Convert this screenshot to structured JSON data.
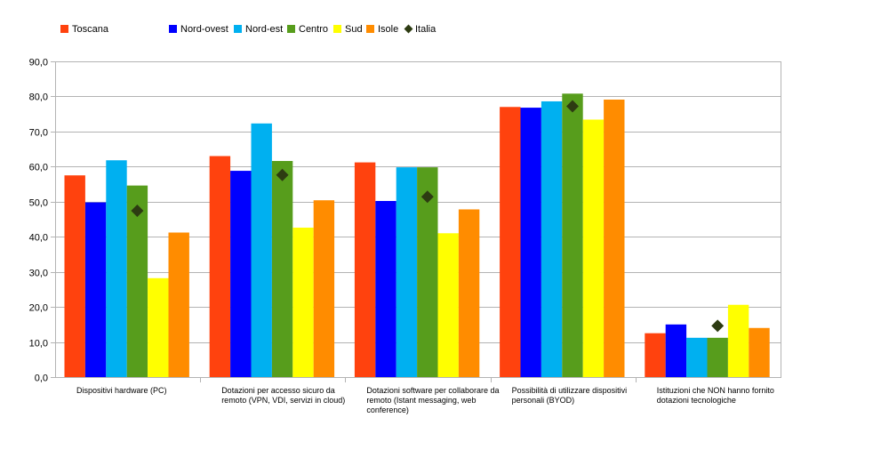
{
  "chart_data": {
    "type": "bar",
    "categories": [
      "Dispositivi hardware (PC)",
      "Dotazioni per accesso sicuro da remoto (VPN, VDI, servizi in cloud)",
      "Dotazioni software per collaborare da remoto (Istant messaging, web conference)",
      "Possibilità di utilizzare dispositivi personali (BYOD)",
      "Istituzioni che NON hanno fornito dotazioni tecnologiche"
    ],
    "series": [
      {
        "name": "Toscana",
        "color": "#ff420e",
        "values": [
          57.5,
          63.0,
          61.2,
          77.0,
          12.5
        ]
      },
      {
        "name": "Nord-ovest",
        "color": "#0000ff",
        "values": [
          49.8,
          58.8,
          50.2,
          76.8,
          15.0
        ]
      },
      {
        "name": "Nord-est",
        "color": "#00b0f0",
        "values": [
          61.8,
          72.3,
          59.8,
          78.6,
          11.2
        ]
      },
      {
        "name": "Centro",
        "color": "#579d1c",
        "values": [
          54.6,
          61.6,
          59.8,
          80.8,
          11.2
        ]
      },
      {
        "name": "Sud",
        "color": "#ffff00",
        "values": [
          28.2,
          42.6,
          41.0,
          73.4,
          20.6
        ]
      },
      {
        "name": "Isole",
        "color": "#ff8c00",
        "values": [
          41.2,
          50.4,
          47.8,
          79.1,
          14.0
        ]
      }
    ],
    "italia": {
      "name": "Italia",
      "color": "#2d3b12",
      "marker": "diamond",
      "values": [
        47.4,
        57.6,
        51.4,
        77.2,
        14.6
      ]
    },
    "ylim": [
      0,
      90
    ],
    "yticks": [
      "0,0",
      "10,0",
      "20,0",
      "30,0",
      "40,0",
      "50,0",
      "60,0",
      "70,0",
      "80,0",
      "90,0"
    ],
    "grid": true,
    "legend_position": "top"
  }
}
